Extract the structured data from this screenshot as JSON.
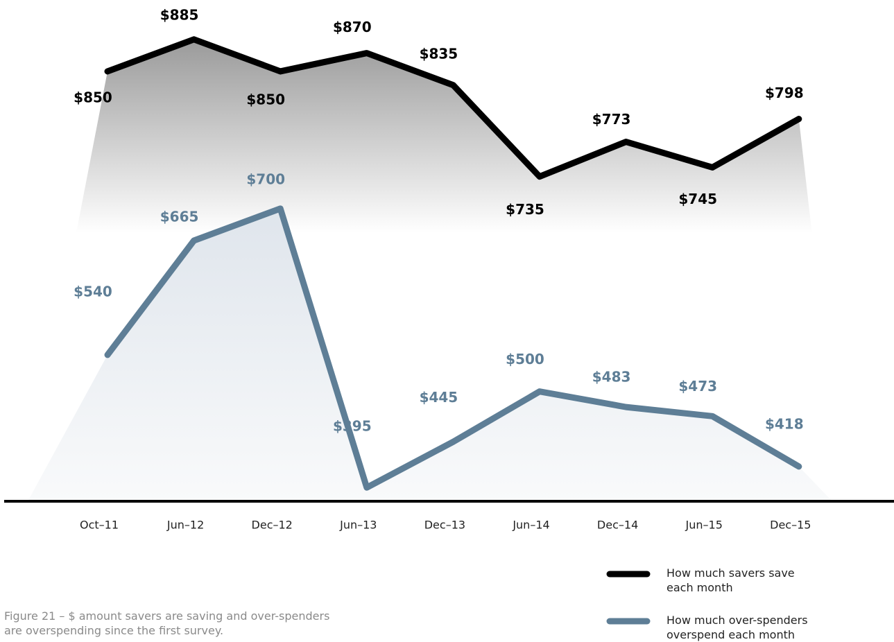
{
  "chart_data": {
    "type": "line",
    "caption": "Figure 21 – $ amount savers are saving and over-spenders are overspending since the first survey.",
    "categories": [
      "Oct–11",
      "Jun–12",
      "Dec–12",
      "Jun–13",
      "Dec–13",
      "Jun–14",
      "Dec–14",
      "Jun–15",
      "Dec–15"
    ],
    "series": [
      {
        "name": "How much savers save each month",
        "color": "#000000",
        "values": [
          850,
          885,
          850,
          870,
          835,
          735,
          773,
          745,
          798
        ],
        "value_labels": [
          "$850",
          "$885",
          "$850",
          "$870",
          "$835",
          "$735",
          "$773",
          "$745",
          "$798"
        ]
      },
      {
        "name": "How much over-spenders overspend each month",
        "color": "#5e7e96",
        "values": [
          540,
          665,
          700,
          395,
          445,
          500,
          483,
          473,
          418
        ],
        "value_labels": [
          "$540",
          "$665",
          "$700",
          "$395",
          "$445",
          "$500",
          "$483",
          "$473",
          "$418"
        ]
      }
    ],
    "ylim": [
      380,
      900
    ],
    "grid": false
  }
}
